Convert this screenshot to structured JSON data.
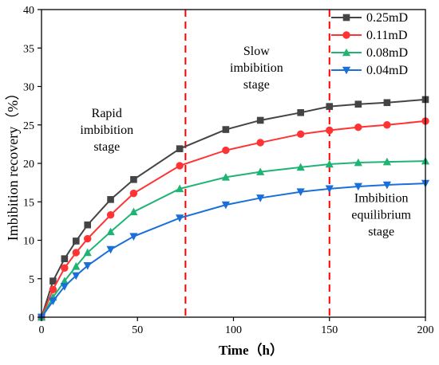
{
  "chart_data": {
    "type": "line",
    "xlabel": "Time（h）",
    "ylabel": "Imbibition recovery（%）",
    "xlim": [
      0,
      200
    ],
    "ylim": [
      0,
      40
    ],
    "xticks": [
      0,
      50,
      100,
      150,
      200
    ],
    "yticks": [
      0,
      5,
      10,
      15,
      20,
      25,
      30,
      35,
      40
    ],
    "grid": false,
    "legend_position": "top-right",
    "series": [
      {
        "name": "0.25mD",
        "color": "#444444",
        "marker": "square",
        "x": [
          0,
          6,
          12,
          18,
          24,
          36,
          48,
          72,
          96,
          114,
          135,
          150,
          165,
          180,
          200
        ],
        "y": [
          0,
          4.7,
          7.6,
          9.9,
          12.0,
          15.3,
          17.9,
          21.9,
          24.4,
          25.6,
          26.6,
          27.4,
          27.7,
          27.9,
          28.3
        ]
      },
      {
        "name": "0.11mD",
        "color": "#ff3333",
        "marker": "circle",
        "x": [
          0,
          6,
          12,
          18,
          24,
          36,
          48,
          72,
          96,
          114,
          135,
          150,
          165,
          180,
          200
        ],
        "y": [
          0,
          3.6,
          6.4,
          8.4,
          10.2,
          13.3,
          16.1,
          19.7,
          21.7,
          22.7,
          23.8,
          24.3,
          24.7,
          25.0,
          25.5
        ]
      },
      {
        "name": "0.08mD",
        "color": "#1fb374",
        "marker": "triangle-up",
        "x": [
          0,
          6,
          12,
          18,
          24,
          36,
          48,
          72,
          96,
          114,
          135,
          150,
          165,
          180,
          200
        ],
        "y": [
          0,
          2.6,
          4.7,
          6.6,
          8.4,
          11.1,
          13.7,
          16.7,
          18.2,
          18.9,
          19.5,
          19.9,
          20.1,
          20.2,
          20.3
        ]
      },
      {
        "name": "0.04mD",
        "color": "#1a6fd8",
        "marker": "triangle-down",
        "x": [
          0,
          6,
          12,
          18,
          24,
          36,
          48,
          72,
          96,
          114,
          135,
          150,
          165,
          180,
          200
        ],
        "y": [
          0,
          2.1,
          4.0,
          5.4,
          6.7,
          8.8,
          10.5,
          12.9,
          14.6,
          15.5,
          16.3,
          16.7,
          17.0,
          17.2,
          17.4
        ]
      }
    ],
    "vlines": {
      "x": [
        75,
        150
      ],
      "color": "#ff0000",
      "style": "dashed"
    },
    "annotations": [
      {
        "lines": [
          "Rapid",
          "imbibition",
          "stage"
        ],
        "x": 34,
        "y": 26.0
      },
      {
        "lines": [
          "Slow",
          "imbibition",
          "stage"
        ],
        "x": 112,
        "y": 34.1
      },
      {
        "lines": [
          "Imbibition",
          "equilibrium",
          "stage"
        ],
        "x": 177,
        "y": 15.0
      }
    ]
  }
}
